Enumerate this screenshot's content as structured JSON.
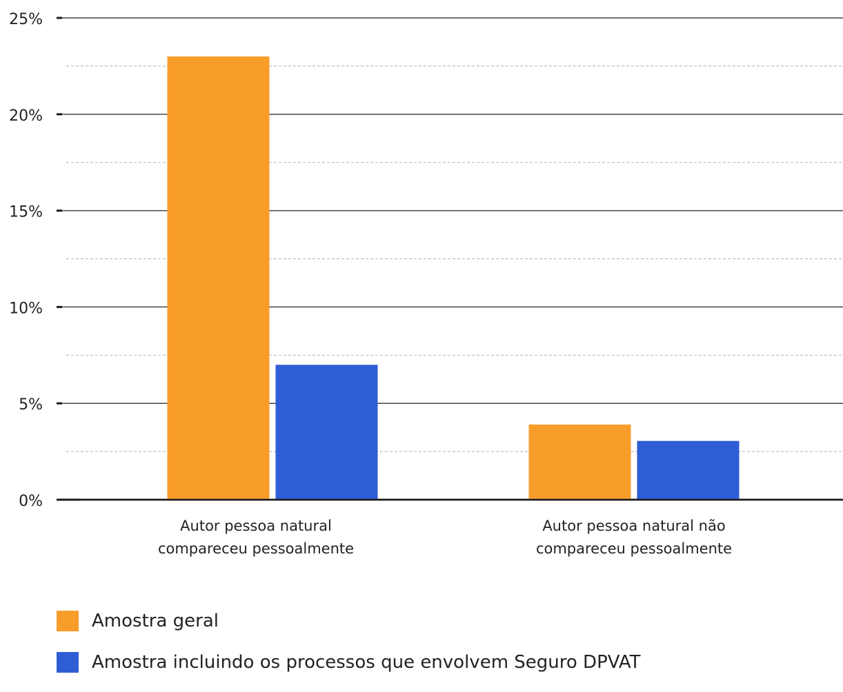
{
  "chart_data": {
    "type": "bar",
    "title": "",
    "xlabel": "",
    "ylabel": "",
    "categories": [
      [
        "Autor pessoa natural",
        "compareceu pessoalmente"
      ],
      [
        "Autor pessoa natural não",
        "compareceu pessoalmente"
      ]
    ],
    "series": [
      {
        "name": "Amostra geral",
        "color": "#F99D2A",
        "values": [
          23.0,
          3.9
        ]
      },
      {
        "name": "Amostra incluindo os processos que envolvem Seguro DPVAT",
        "color": "#2F5DD6",
        "values": [
          7.0,
          3.05
        ]
      }
    ],
    "ylim": [
      0,
      25
    ],
    "yticks": [
      0,
      5,
      10,
      15,
      20,
      25
    ],
    "ytick_labels": [
      "0%",
      "5%",
      "10%",
      "15%",
      "20%",
      "25%"
    ],
    "minor_grid": [
      2.5,
      7.5,
      12.5,
      17.5,
      22.5
    ],
    "grid": true,
    "legend_position": "bottom-left"
  }
}
